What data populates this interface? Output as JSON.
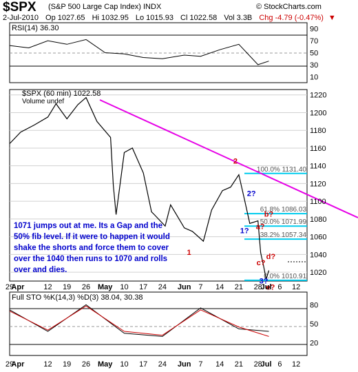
{
  "header": {
    "symbol": "$SPX",
    "name": "(S&P 500 Large Cap Index) INDX",
    "brand": "© StockCharts.com",
    "date": "2-Jul-2010",
    "open": "Op 1027.65",
    "high": "Hi 1032.95",
    "low": "Lo 1015.93",
    "close": "Cl 1022.58",
    "vol": "Vol 3.3B",
    "change": "Chg -4.79 (-0.47%)",
    "change_arrow": "▼"
  },
  "rsi_panel": {
    "label": "RSI(14) 36.30",
    "ticks": [
      "90",
      "70",
      "50",
      "30",
      "10"
    ]
  },
  "price_panel": {
    "label": "$SPX (60 min) 1022.58",
    "sublabel": "Volume undef",
    "ticks": [
      "1220",
      "1200",
      "1180",
      "1160",
      "1140",
      "1120",
      "1100",
      "1080",
      "1060",
      "1040",
      "1020"
    ],
    "fib_labels": [
      "100.0% 1131.40",
      "61.8% 1086.03",
      "50.0% 1071.99",
      "38.2% 1057.34",
      "0.0% 1010.91"
    ],
    "wave_labels": [
      "1",
      "2",
      "1?",
      "2?",
      "a?",
      "b?",
      "c?",
      "d?",
      "3?",
      "e?"
    ],
    "annotation": "1071 jumps out at me. Its a Gap and the 50% fib level. If it were to happen it would shake the shorts and force them to cover over the 1040 then runs to 1070 and rolls over and dies."
  },
  "sto_panel": {
    "label": "Full STO %K(14,3) %D(3) 38.04, 30.38",
    "ticks": [
      "80",
      "50",
      "20"
    ]
  },
  "x_axis": {
    "ticks": [
      "29",
      "Apr",
      "12",
      "19",
      "26",
      "May",
      "10",
      "17",
      "24",
      "Jun",
      "7",
      "14",
      "21",
      "28",
      "Jul",
      "6",
      "12"
    ]
  },
  "colors": {
    "price": "#000000",
    "trendline": "#e600e6",
    "fib": "#00ccee",
    "wave_red": "#cc0000",
    "wave_blue": "#0000cc",
    "sto_k": "#000000",
    "sto_d": "#cc0000"
  },
  "chart_data": [
    {
      "type": "line",
      "title": "RSI(14) 36.30",
      "ylim": [
        0,
        100
      ],
      "x": [
        "Mar 29",
        "Apr 5",
        "Apr 12",
        "Apr 19",
        "Apr 26",
        "May 3",
        "May 10",
        "May 17",
        "May 24",
        "Jun 1",
        "Jun 7",
        "Jun 14",
        "Jun 21",
        "Jun 28",
        "Jul 2"
      ],
      "series": [
        {
          "name": "RSI(14)",
          "values": [
            62,
            58,
            70,
            64,
            72,
            50,
            48,
            42,
            40,
            46,
            44,
            55,
            64,
            30,
            36
          ]
        }
      ]
    },
    {
      "type": "line",
      "title": "$SPX (60 min) 1022.58",
      "ylim": [
        1010,
        1226
      ],
      "x": [
        "Mar 29",
        "Apr 2",
        "Apr 7",
        "Apr 12",
        "Apr 15",
        "Apr 19",
        "Apr 23",
        "Apr 26",
        "Apr 30",
        "May 5",
        "May 6",
        "May 7",
        "May 10",
        "May 13",
        "May 17",
        "May 20",
        "May 21",
        "May 25",
        "May 27",
        "Jun 1",
        "Jun 4",
        "Jun 8",
        "Jun 11",
        "Jun 15",
        "Jun 18",
        "Jun 21",
        "Jun 23",
        "Jun 25",
        "Jun 28",
        "Jun 29",
        "Jun 30",
        "Jul 1",
        "Jul 2"
      ],
      "series": [
        {
          "name": "$SPX",
          "values": [
            1165,
            1178,
            1186,
            1195,
            1210,
            1193,
            1209,
            1217,
            1190,
            1172,
            1118,
            1085,
            1155,
            1160,
            1132,
            1088,
            1085,
            1072,
            1096,
            1070,
            1066,
            1055,
            1090,
            1112,
            1116,
            1130,
            1103,
            1075,
            1078,
            1042,
            1028,
            1012,
            1022
          ]
        }
      ],
      "annotations": [
        "1",
        "2",
        "1?",
        "2?",
        "a?",
        "b?",
        "c?",
        "d?",
        "3?",
        "e?"
      ],
      "fib_levels": [
        {
          "label": "100.0% 1131.40",
          "value": 1131.4
        },
        {
          "label": "61.8% 1086.03",
          "value": 1086.03
        },
        {
          "label": "50.0% 1071.99",
          "value": 1071.99
        },
        {
          "label": "38.2% 1057.34",
          "value": 1057.34
        },
        {
          "label": "0.0% 1010.91",
          "value": 1010.91
        }
      ]
    },
    {
      "type": "line",
      "title": "Full STO %K(14,3) %D(3) 38.04, 30.38",
      "ylim": [
        0,
        100
      ],
      "x": [
        "Mar 29",
        "Apr 12",
        "Apr 26",
        "May 10",
        "May 24",
        "Jun 7",
        "Jun 21",
        "Jul 2"
      ],
      "series": [
        {
          "name": "%K",
          "values": [
            72,
            38,
            80,
            35,
            30,
            75,
            42,
            38
          ]
        },
        {
          "name": "%D",
          "values": [
            70,
            40,
            78,
            38,
            32,
            72,
            45,
            30
          ]
        }
      ]
    }
  ]
}
